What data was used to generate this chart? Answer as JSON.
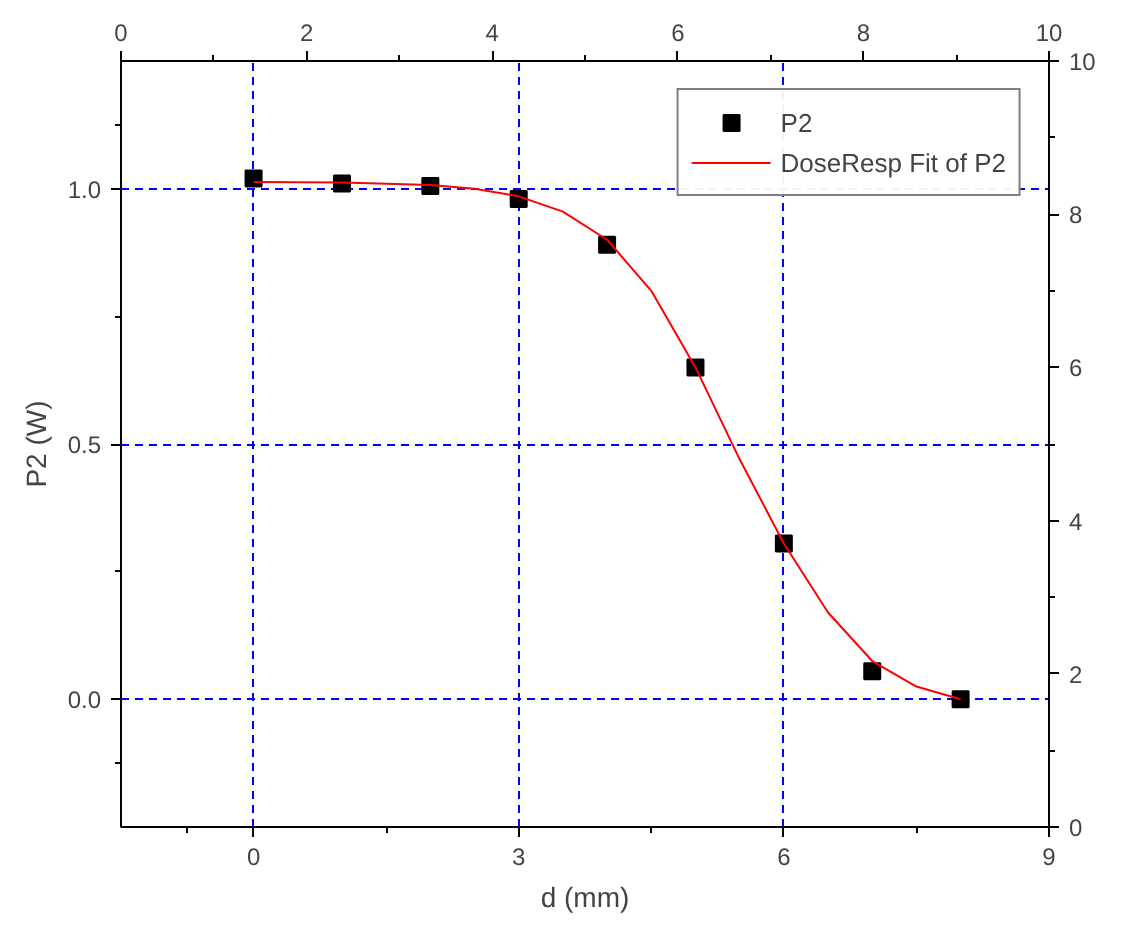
{
  "chart_data": {
    "type": "scatter",
    "xlabel": "d (mm)",
    "ylabel": "P2 (W)",
    "xlim": [
      -1.5,
      9
    ],
    "xticks": [
      0,
      3,
      6,
      9
    ],
    "ylim": [
      -0.25,
      1.25
    ],
    "yticks": [
      {
        "value": 0,
        "label": "0.0"
      },
      {
        "value": 0.5,
        "label": "0.5"
      },
      {
        "value": 1.0,
        "label": "1.0"
      }
    ],
    "x2lim": [
      0,
      10
    ],
    "x2ticks": [
      0,
      2,
      4,
      6,
      8,
      10
    ],
    "y2lim": [
      0,
      10
    ],
    "y2ticks": [
      0,
      2,
      4,
      6,
      8,
      10
    ],
    "grid": true,
    "legend": "top right",
    "series": [
      {
        "name": "P2",
        "marker": "square",
        "color": "#000000",
        "x": [
          0,
          1,
          2,
          3,
          4,
          5,
          6,
          7,
          8
        ],
        "values": [
          1.02,
          1.01,
          1.005,
          0.98,
          0.89,
          0.65,
          0.305,
          0.055,
          0.0
        ]
      },
      {
        "name": "DoseResp Fit of P2",
        "type": "line",
        "line_style": "solid",
        "color": "#ff0000",
        "x": [
          0,
          1,
          2,
          2.5,
          3,
          3.5,
          4,
          4.5,
          5,
          5.5,
          6,
          6.5,
          7,
          7.5,
          8
        ],
        "values": [
          1.013,
          1.012,
          1.007,
          1.0,
          0.985,
          0.955,
          0.9,
          0.8,
          0.65,
          0.47,
          0.305,
          0.17,
          0.075,
          0.025,
          0.0
        ]
      }
    ]
  }
}
